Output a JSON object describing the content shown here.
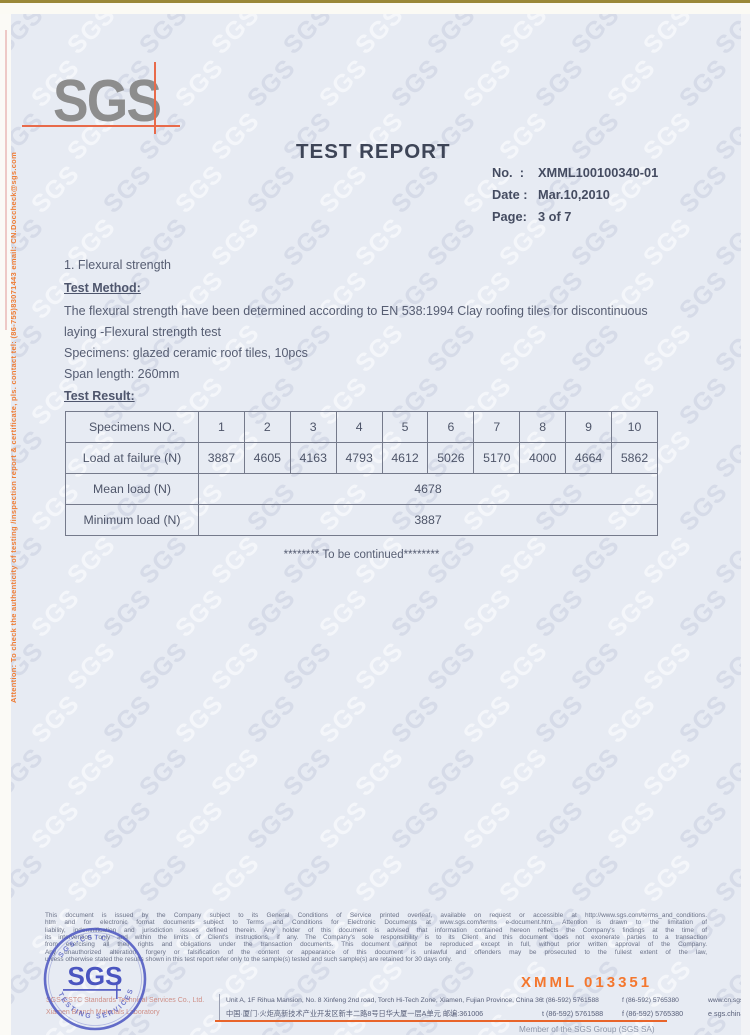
{
  "watermark": {
    "text": "SGS"
  },
  "logo": {
    "text": "SGS"
  },
  "header": {
    "title": "TEST REPORT",
    "meta": [
      {
        "label": "No.  :",
        "value": "XMML100100340-01"
      },
      {
        "label": "Date :",
        "value": "Mar.10,2010"
      },
      {
        "label": "Page:",
        "value": "3 of 7"
      }
    ]
  },
  "body": {
    "section_title": "1. Flexural strength",
    "method_heading": "Test Method:",
    "method_line1": "The flexural strength have been determined according to EN 538:1994 Clay roofing tiles for discontinuous",
    "method_line2": "laying -Flexural strength test",
    "specimens_line": "Specimens: glazed ceramic roof tiles, 10pcs",
    "span_line": "Span length: 260mm",
    "result_heading": "Test Result:"
  },
  "table": {
    "col_header_label": "Specimens NO.",
    "col_headers": [
      "1",
      "2",
      "3",
      "4",
      "5",
      "6",
      "7",
      "8",
      "9",
      "10"
    ],
    "load_label": "Load at failure (N)",
    "load_values": [
      "3887",
      "4605",
      "4163",
      "4793",
      "4612",
      "5026",
      "5170",
      "4000",
      "4664",
      "5862"
    ],
    "mean_label": "Mean load (N)",
    "mean_value": "4678",
    "min_label": "Minimum load (N)",
    "min_value": "3887"
  },
  "continued_text": "******** To be continued********",
  "side_note": "Attention: To check the authenticity of testing /inspection report & certificate, pls. contact tel: (86-755)83071443 email: CN.Doccheck@sgs.com",
  "footer": {
    "disclaimer_lines": [
      "This document is issued by the Company subject to its General Conditions of Service printed overleaf, available on request or accessible at http://www.sgs.com/terms_and_conditions.",
      "htm and for electronic format documents subject to Terms and Conditions for Electronic Documents at www.sgs.com/terms e-document.htm. Attention is drawn to the limitation of",
      "liability, indemnification and jurisdiction issues defined therein. Any holder of this document is advised that information contained hereon reflects the Company's findings at the time of",
      "its intervention only and within the limits of Client's instructions, if any. The Company's sole responsibility is to its Client and this document does not exonerate parties to a transaction",
      "from exercising all their rights and obligations under the transaction documents. This document cannot be reproduced except in full, without prior written approval of the Company.",
      "Any unauthorized alteration, forgery or falsification of the content or appearance of this document is unlawful and offenders may be prosecuted to the fullest extent of the law,",
      "unless otherwise stated the results shown in this test report refer only to the sample(s) tested and such sample(s) are retained for 30 days only."
    ],
    "stamp": {
      "center_text": "SGS",
      "ring_top": "SGS-CSTC",
      "ring_bottom": "TESTING SERVICES"
    },
    "company_lines": [
      "SGS-CSTC Standards Technical Services Co., Ltd.",
      "Xiamen Branch Materials Laboratory"
    ],
    "contact": {
      "address_en": "Unit A, 1F Rihua Mansion, No. 8 Xinfeng 2nd road, Torch Hi-Tech Zone, Xiamen, Fujian Province, China 361006",
      "tel_en": "t  (86-592) 5761588",
      "fax_en": "f  (86-592) 5765380",
      "web": "www.cn.sgs.com",
      "address_cn": "中国·厦门·火炬高新技术产业开发区新丰二路8号日华大厦一层A单元  邮编:361006",
      "tel_cn": "t  (86-592) 5761588",
      "fax_cn": "f  (86-592) 5765380",
      "email": "e  sgs.china@sgs.com"
    },
    "serial": "XMML 013351",
    "member": "Member of the SGS Group (SGS SA)"
  },
  "colors": {
    "page_bg": "#e7ebf3",
    "accent_red": "#e86a4a",
    "serial_orange": "#f4772e",
    "stamp_blue": "#4a55c0"
  }
}
